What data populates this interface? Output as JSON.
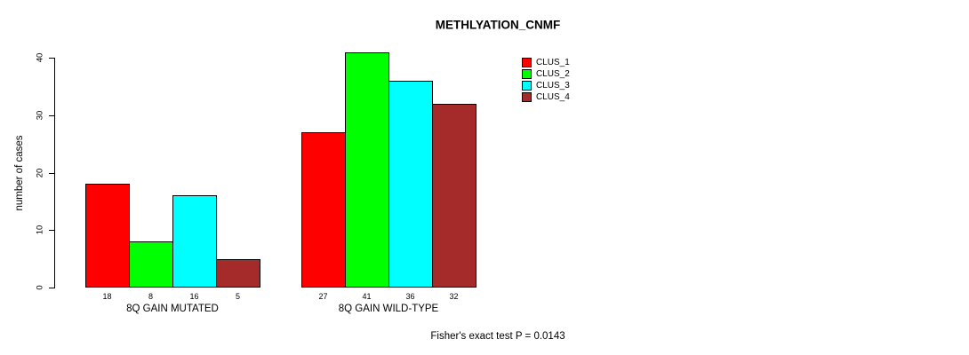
{
  "chart_data": {
    "type": "bar",
    "title": "METHLYATION_CNMF",
    "ylabel": "number of cases",
    "xlabel": "",
    "ylim": [
      0,
      40
    ],
    "yticks": [
      0,
      10,
      20,
      30,
      40
    ],
    "categories": [
      "8Q GAIN MUTATED",
      "8Q GAIN WILD-TYPE"
    ],
    "series": [
      {
        "name": "CLUS_1",
        "color": "#FF0000",
        "values": [
          18,
          27
        ]
      },
      {
        "name": "CLUS_2",
        "color": "#00FF00",
        "values": [
          8,
          41
        ]
      },
      {
        "name": "CLUS_3",
        "color": "#00FFFF",
        "values": [
          16,
          36
        ]
      },
      {
        "name": "CLUS_4",
        "color": "#A52A2A",
        "values": [
          5,
          32
        ]
      }
    ],
    "bar_value_labels": [
      [
        18,
        8,
        16,
        5
      ],
      [
        27,
        41,
        36,
        32
      ]
    ],
    "legend_position": "top-right",
    "grid": false,
    "annotation": "Fisher's exact test P = 0.0143"
  }
}
